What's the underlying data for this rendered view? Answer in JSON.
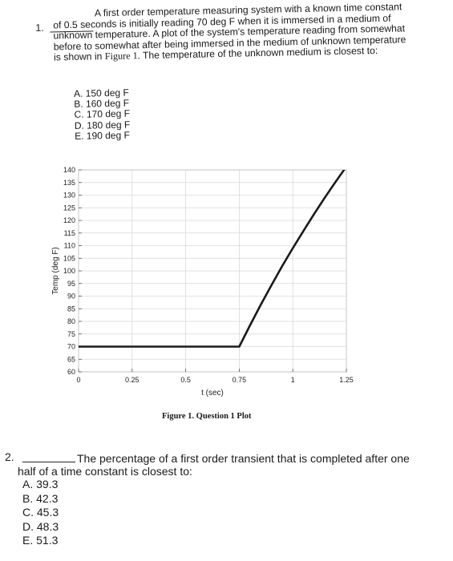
{
  "question1": {
    "number": "1.",
    "text_main": "A first order temperature measuring system with a known time constant of 0.5 seconds is initially reading 70 deg F when it is immersed in a medium of unknown temperature. A plot of the system's temperature reading from somewhat before to somewhat after being immersed in the medium of unknown temperature is shown in ",
    "figure_ref": "Figure 1.",
    "text_end": " The temperature of the unknown medium is closest to:",
    "choices": [
      "A.  150 deg F",
      "B.  160 deg F",
      "C.  170 deg F",
      "D.  180 deg F",
      "E.  190 deg F"
    ]
  },
  "chart_data": {
    "type": "line",
    "title": "",
    "xlabel": "t (sec)",
    "ylabel": "Temp (deg F)",
    "caption": "Figure 1.  Question 1 Plot",
    "xlim": [
      0,
      1.25
    ],
    "ylim": [
      60,
      140
    ],
    "x_ticks": [
      0,
      0.25,
      0.5,
      0.75,
      1,
      1.25
    ],
    "x_tick_labels": [
      "0",
      "0.25",
      "0.5",
      "0.75",
      "1",
      "1.25"
    ],
    "y_ticks": [
      60,
      65,
      70,
      75,
      80,
      85,
      90,
      95,
      100,
      105,
      110,
      115,
      120,
      125,
      130,
      135,
      140
    ],
    "y_tick_labels": [
      "60",
      "65",
      "70",
      "75",
      "80",
      "85",
      "90",
      "95",
      "100",
      "105",
      "110",
      "115",
      "120",
      "125",
      "130",
      "135",
      "140"
    ],
    "grid": true,
    "series": [
      {
        "x": [
          0,
          0.75,
          0.8,
          0.85,
          0.9,
          0.95,
          1.0,
          1.05,
          1.1,
          1.15,
          1.2,
          1.25
        ],
        "y": [
          70,
          70,
          78.4,
          86.5,
          94.3,
          101.8,
          109.0,
          115.9,
          122.6,
          129.1,
          135.3,
          141.3
        ]
      }
    ]
  },
  "question2": {
    "number": "2.",
    "line1": "The percentage of a first order transient that is completed after one",
    "line2": "half of a time constant is closest to:",
    "choices": [
      "A.  39.3",
      "B.  42.3",
      "C.  45.3",
      "D.  48.3",
      "E.  51.3"
    ]
  }
}
